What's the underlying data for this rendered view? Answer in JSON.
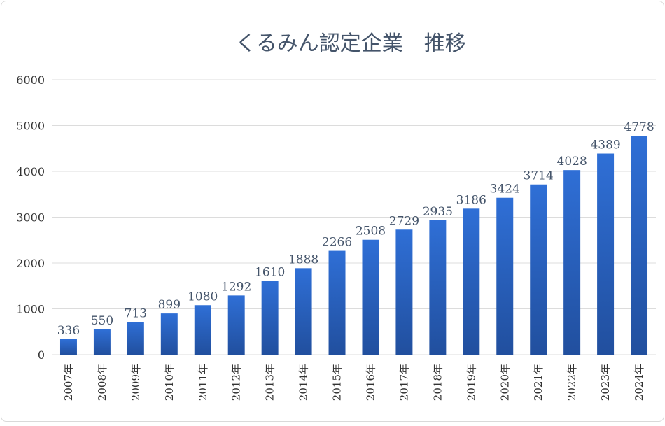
{
  "chart_data": {
    "type": "bar",
    "title": "くるみん認定企業　推移",
    "xlabel": "",
    "ylabel": "",
    "ylim": [
      0,
      6000
    ],
    "yticks": [
      0,
      1000,
      2000,
      3000,
      4000,
      5000,
      6000
    ],
    "grid": true,
    "legend": "none",
    "categories": [
      "2007年",
      "2008年",
      "2009年",
      "2010年",
      "2011年",
      "2012年",
      "2013年",
      "2014年",
      "2015年",
      "2016年",
      "2017年",
      "2018年",
      "2019年",
      "2020年",
      "2021年",
      "2022年",
      "2023年",
      "2024年"
    ],
    "values": [
      336,
      550,
      713,
      899,
      1080,
      1292,
      1610,
      1888,
      2266,
      2508,
      2729,
      2935,
      3186,
      3424,
      3714,
      4028,
      4389,
      4778
    ],
    "colors": {
      "bar_top": "#2f6fd6",
      "bar_bottom": "#214f9e",
      "title": "#44546a",
      "gridline": "#dcdcdc"
    }
  }
}
